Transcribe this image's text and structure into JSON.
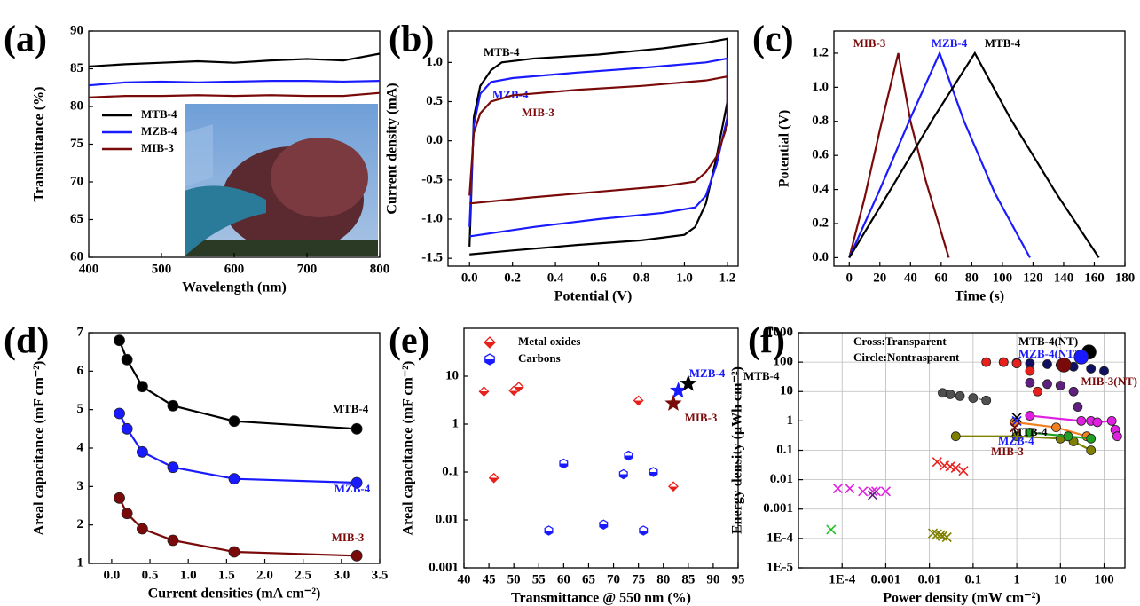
{
  "chart_data": [
    {
      "type": "line",
      "label": "(a)",
      "x_label": "Wavelength (nm)",
      "y_label": "Transmittance (%)",
      "x": [
        400,
        450,
        500,
        550,
        600,
        650,
        700,
        750,
        800
      ],
      "series": [
        {
          "name": "MTB-4",
          "color": "#000000",
          "values": [
            85.3,
            85.6,
            85.8,
            86.0,
            85.8,
            86.1,
            86.3,
            86.1,
            87.0
          ]
        },
        {
          "name": "MZB-4",
          "color": "#1a1aff",
          "values": [
            82.8,
            83.2,
            83.3,
            83.2,
            83.3,
            83.4,
            83.4,
            83.3,
            83.4
          ]
        },
        {
          "name": "MIB-3",
          "color": "#7a0a0a",
          "values": [
            81.2,
            81.4,
            81.4,
            81.5,
            81.4,
            81.5,
            81.4,
            81.4,
            81.8
          ]
        }
      ],
      "xlim": [
        400,
        800
      ],
      "xticks": [
        400,
        500,
        600,
        700,
        800
      ],
      "ylim": [
        60,
        90
      ],
      "yticks": [
        60,
        65,
        70,
        75,
        80,
        85,
        90
      ],
      "legend": "upper left"
    },
    {
      "type": "line",
      "label": "(b)",
      "x_label": "Potential (V)",
      "y_label": "Current density (mA)",
      "series": [
        {
          "name": "MTB-4",
          "color": "#000000",
          "x": [
            0,
            0.02,
            0.05,
            0.1,
            0.15,
            0.3,
            0.6,
            0.9,
            1.1,
            1.2,
            1.2,
            1.15,
            1.1,
            1.05,
            1.0,
            0.8,
            0.5,
            0.2,
            0
          ],
          "values": [
            -1.35,
            0.3,
            0.7,
            0.9,
            1.0,
            1.05,
            1.1,
            1.18,
            1.25,
            1.3,
            0.5,
            -0.2,
            -0.8,
            -1.1,
            -1.2,
            -1.27,
            -1.33,
            -1.4,
            -1.45
          ]
        },
        {
          "name": "MZB-4",
          "color": "#1a1aff",
          "x": [
            0,
            0.02,
            0.05,
            0.1,
            0.2,
            0.5,
            0.8,
            1.1,
            1.2,
            1.2,
            1.15,
            1.1,
            1.05,
            0.9,
            0.6,
            0.3,
            0
          ],
          "values": [
            -1.1,
            0.2,
            0.6,
            0.75,
            0.8,
            0.87,
            0.93,
            1.0,
            1.05,
            0.3,
            -0.3,
            -0.7,
            -0.85,
            -0.92,
            -1.0,
            -1.1,
            -1.22
          ]
        },
        {
          "name": "MIB-3",
          "color": "#7a0a0a",
          "x": [
            0,
            0.02,
            0.05,
            0.1,
            0.2,
            0.5,
            0.8,
            1.1,
            1.2,
            1.2,
            1.15,
            1.1,
            1.05,
            0.9,
            0.6,
            0.3,
            0
          ],
          "values": [
            -0.7,
            0.1,
            0.35,
            0.5,
            0.58,
            0.65,
            0.7,
            0.77,
            0.82,
            0.2,
            -0.2,
            -0.4,
            -0.52,
            -0.58,
            -0.65,
            -0.72,
            -0.8
          ]
        }
      ],
      "xlim": [
        -0.1,
        1.25
      ],
      "xticks": [
        {
          "value": 0,
          "label": "0.0"
        },
        0.2,
        0.4,
        0.6,
        0.8,
        {
          "value": 1,
          "label": "1.0"
        },
        1.2
      ],
      "ylim": [
        -1.6,
        1.4
      ],
      "yticks": [
        -1.5,
        {
          "value": -1,
          "label": "-1.0"
        },
        -0.5,
        {
          "value": 0,
          "label": "0.0"
        },
        0.5,
        {
          "value": 1,
          "label": "1.0"
        }
      ]
    },
    {
      "type": "line",
      "label": "(c)",
      "x_label": "Time (s)",
      "y_label": "Potential (V)",
      "series": [
        {
          "name": "MIB-3",
          "color": "#7a0a0a",
          "x": [
            0,
            10,
            20,
            32,
            40,
            50,
            65
          ],
          "values": [
            0,
            0.35,
            0.75,
            1.2,
            0.8,
            0.45,
            0
          ]
        },
        {
          "name": "MZB-4",
          "color": "#1a1aff",
          "x": [
            0,
            20,
            40,
            59,
            75,
            95,
            118
          ],
          "values": [
            0,
            0.4,
            0.82,
            1.2,
            0.8,
            0.38,
            0
          ]
        },
        {
          "name": "MTB-4",
          "color": "#000000",
          "x": [
            0,
            27,
            55,
            82,
            105,
            135,
            163
          ],
          "values": [
            0,
            0.4,
            0.82,
            1.2,
            0.82,
            0.38,
            0
          ]
        }
      ],
      "xlim": [
        -10,
        180
      ],
      "xticks": [
        0,
        20,
        40,
        60,
        80,
        100,
        120,
        140,
        160,
        180
      ],
      "ylim": [
        -0.05,
        1.33
      ],
      "yticks": [
        {
          "value": 0,
          "label": "0.0"
        },
        0.2,
        0.4,
        0.6,
        0.8,
        {
          "value": 1,
          "label": "1.0"
        },
        1.2
      ]
    },
    {
      "type": "line",
      "label": "(d)",
      "x_label": "Current densities (mA cm⁻²)",
      "y_label": "Areal capacitance (mF cm⁻²)",
      "x": [
        0.1,
        0.2,
        0.4,
        0.8,
        1.6,
        3.2
      ],
      "series": [
        {
          "name": "MTB-4",
          "color": "#000000",
          "marker": "circle",
          "values": [
            6.8,
            6.3,
            5.6,
            5.1,
            4.7,
            4.5
          ]
        },
        {
          "name": "MZB-4",
          "color": "#1a1aff",
          "marker": "circle",
          "values": [
            4.9,
            4.5,
            3.9,
            3.5,
            3.2,
            3.1
          ]
        },
        {
          "name": "MIB-3",
          "color": "#7a0a0a",
          "marker": "circle",
          "values": [
            2.7,
            2.3,
            1.9,
            1.6,
            1.3,
            1.2
          ]
        }
      ],
      "xlim": [
        -0.3,
        3.5
      ],
      "xticks": [
        {
          "value": 0,
          "label": "0.0"
        },
        0.5,
        {
          "value": 1,
          "label": "1.0"
        },
        1.5,
        {
          "value": 2,
          "label": "2.0"
        },
        2.5,
        {
          "value": 3,
          "label": "3.0"
        },
        3.5
      ],
      "ylim": [
        1,
        7
      ],
      "yticks": [
        1,
        2,
        3,
        4,
        5,
        6,
        7
      ]
    },
    {
      "type": "scatter",
      "label": "(e)",
      "x_label": "Transmittance @ 550 nm (%)",
      "y_label": "Areal capacitance (mF cm⁻²)",
      "series": [
        {
          "name": "Metal oxides",
          "color": "#e8201c",
          "marker": "diamond-half",
          "x": [
            44,
            50,
            51,
            46,
            75,
            82
          ],
          "values": [
            4.8,
            5,
            6,
            0.075,
            3.1,
            0.05
          ]
        },
        {
          "name": "Carbons",
          "color": "#1a1aff",
          "marker": "hexagon-half",
          "x": [
            57,
            60,
            68,
            72,
            73,
            76,
            78
          ],
          "values": [
            0.006,
            0.15,
            0.008,
            0.09,
            0.22,
            0.006,
            0.1
          ]
        },
        {
          "name": "MZB-4",
          "color": "#1a1aff",
          "marker": "star",
          "legend": false,
          "x": [
            83
          ],
          "values": [
            5
          ]
        },
        {
          "name": "MTB-4",
          "color": "#000000",
          "marker": "star",
          "legend": false,
          "x": [
            85
          ],
          "values": [
            7
          ]
        },
        {
          "name": "MIB-3",
          "color": "#7a0a0a",
          "marker": "star",
          "legend": false,
          "x": [
            82
          ],
          "values": [
            2.7
          ]
        }
      ],
      "xlim": [
        40,
        95
      ],
      "xticks": [
        40,
        45,
        50,
        55,
        60,
        65,
        70,
        75,
        80,
        85,
        90,
        95
      ],
      "ylim": [
        0.001,
        100
      ],
      "yticks": [
        0.001,
        0.01,
        0.1,
        1,
        10
      ],
      "ylog": true,
      "legend": "upper left"
    },
    {
      "type": "scatter",
      "label": "(f)",
      "x_label": "Power density (mW cm⁻²)",
      "y_label": "Energy density (μWh cm⁻²)",
      "annotations": [
        "Cross:Transparent",
        "Circle:Nontrasparent"
      ],
      "series": [
        {
          "color": "#e8201c",
          "marker": "cross",
          "x": [
            0.015,
            0.022,
            0.03,
            0.04,
            0.06
          ],
          "values": [
            0.04,
            0.03,
            0.028,
            0.025,
            0.02
          ]
        },
        {
          "color": "#e020e0",
          "marker": "cross",
          "x": [
            8e-05,
            0.00015,
            0.0003,
            0.0005,
            0.0006,
            0.001
          ],
          "values": [
            0.005,
            0.005,
            0.004,
            0.004,
            0.004,
            0.004
          ]
        },
        {
          "color": "#20c020",
          "marker": "cross",
          "x": [
            5.6e-05
          ],
          "values": [
            0.0002
          ]
        },
        {
          "color": "#808000",
          "marker": "cross",
          "x": [
            0.012,
            0.015,
            0.018,
            0.02,
            0.025
          ],
          "values": [
            0.00015,
            0.00014,
            0.00013,
            0.00012,
            0.00011
          ]
        },
        {
          "color": "#602080",
          "marker": "cross",
          "x": [
            0.0005
          ],
          "values": [
            0.003
          ]
        },
        {
          "color": "#505050",
          "marker": "circle",
          "line": true,
          "x": [
            0.02,
            0.03,
            0.05,
            0.1,
            0.2
          ],
          "values": [
            9,
            8,
            7,
            6,
            5
          ]
        },
        {
          "color": "#101060",
          "marker": "circle",
          "x": [
            0.5,
            1,
            2,
            5,
            10,
            20,
            50,
            100
          ],
          "values": [
            100,
            95,
            90,
            85,
            80,
            70,
            60,
            50
          ]
        },
        {
          "color": "#e8201c",
          "marker": "circle",
          "x": [
            0.2,
            0.5,
            1,
            2,
            3
          ],
          "values": [
            100,
            100,
            90,
            50,
            10
          ]
        },
        {
          "color": "#602080",
          "marker": "circle",
          "x": [
            2,
            5,
            10,
            20,
            25
          ],
          "values": [
            20,
            18,
            16,
            10,
            3
          ]
        },
        {
          "color": "#e020e0",
          "marker": "circle",
          "line": true,
          "x": [
            2,
            30,
            50,
            70,
            150,
            180,
            200
          ],
          "values": [
            1.5,
            1,
            1,
            0.9,
            1,
            0.5,
            0.3
          ]
        },
        {
          "color": "#f08020",
          "marker": "circle",
          "line": true,
          "x": [
            0.9,
            8,
            40
          ],
          "values": [
            0.9,
            0.6,
            0.3
          ]
        },
        {
          "color": "#808000",
          "marker": "circle",
          "line": true,
          "x": [
            0.04,
            1,
            10,
            20,
            50
          ],
          "values": [
            0.3,
            0.3,
            0.25,
            0.2,
            0.1
          ]
        },
        {
          "color": "#20a020",
          "marker": "circle",
          "line": true,
          "x": [
            2,
            15,
            50
          ],
          "values": [
            0.4,
            0.3,
            0.25
          ]
        },
        {
          "name": "MTB-4",
          "color": "#000000",
          "marker": "cross",
          "x": [
            1
          ],
          "values": [
            1.3
          ]
        },
        {
          "name": "MZB-4",
          "color": "#1a1aff",
          "marker": "cross",
          "x": [
            1
          ],
          "values": [
            1
          ]
        },
        {
          "name": "MIB-3",
          "color": "#7a0a0a",
          "marker": "cross",
          "x": [
            0.9
          ],
          "values": [
            0.6
          ]
        },
        {
          "name": "MTB-4(NT)",
          "color": "#000000",
          "marker": "big-circle",
          "x": [
            45
          ],
          "values": [
            220
          ]
        },
        {
          "name": "MZB-4(NT)",
          "color": "#1a1aff",
          "marker": "big-circle",
          "x": [
            30
          ],
          "values": [
            150
          ]
        },
        {
          "name": "MIB-3(NT)",
          "color": "#7a0a0a",
          "marker": "big-circle",
          "x": [
            12
          ],
          "values": [
            80
          ]
        }
      ],
      "xlim": [
        1e-05,
        300
      ],
      "xticks": [
        {
          "value": 0.0001,
          "label": "1E-4"
        },
        0.001,
        0.01,
        0.1,
        1,
        10,
        100
      ],
      "xlog": true,
      "ylim": [
        1e-05,
        1000
      ],
      "yticks": [
        {
          "value": 1e-05,
          "label": "1E-5"
        },
        {
          "value": 0.0001,
          "label": "1E-4"
        },
        0.001,
        0.01,
        0.1,
        1,
        10,
        100,
        1000
      ],
      "ylog": true,
      "grid": true
    }
  ]
}
